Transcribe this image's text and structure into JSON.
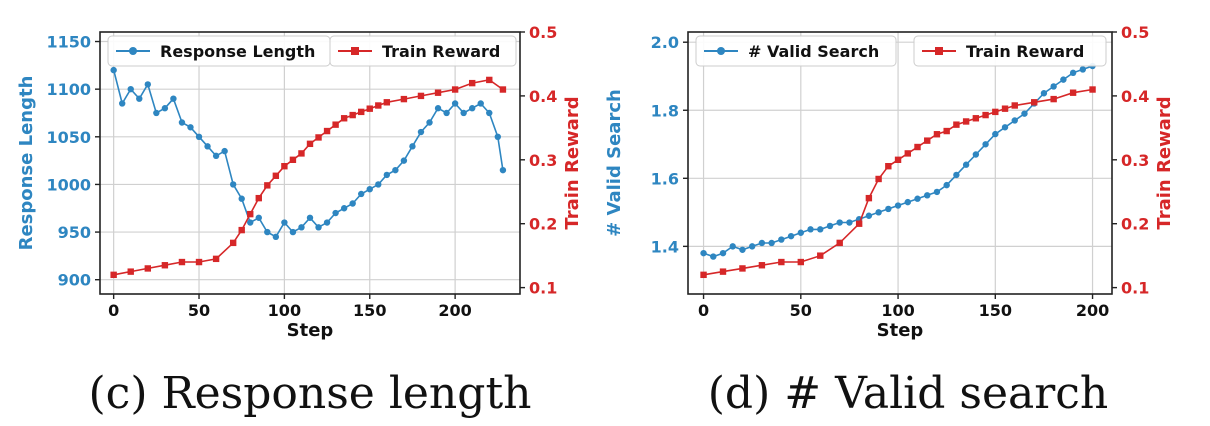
{
  "colors": {
    "blue": "#2e86c1",
    "red": "#d62728"
  },
  "chart_data": [
    {
      "type": "line",
      "caption": "(c) Response length",
      "xlabel": "Step",
      "ylabel_left": "Response Length",
      "ylabel_right": "Train Reward",
      "xlim": [
        -8,
        238
      ],
      "ylim_left": [
        885,
        1160
      ],
      "ylim_right": [
        0.09,
        0.5
      ],
      "x_ticks": [
        0,
        50,
        100,
        150,
        200
      ],
      "y_ticks_left": [
        900,
        950,
        1000,
        1050,
        1100,
        1150
      ],
      "y_ticks_right": [
        0.1,
        0.2,
        0.3,
        0.4,
        0.5
      ],
      "grid": true,
      "legend": [
        "Response Length",
        "Train Reward"
      ],
      "series": [
        {
          "name": "Response Length",
          "axis": "left",
          "color": "#2e86c1",
          "marker": "circle",
          "points": [
            [
              0,
              1120
            ],
            [
              5,
              1085
            ],
            [
              10,
              1100
            ],
            [
              15,
              1090
            ],
            [
              20,
              1105
            ],
            [
              25,
              1075
            ],
            [
              30,
              1080
            ],
            [
              35,
              1090
            ],
            [
              40,
              1065
            ],
            [
              45,
              1060
            ],
            [
              50,
              1050
            ],
            [
              55,
              1040
            ],
            [
              60,
              1030
            ],
            [
              65,
              1035
            ],
            [
              70,
              1000
            ],
            [
              75,
              985
            ],
            [
              80,
              960
            ],
            [
              85,
              965
            ],
            [
              90,
              950
            ],
            [
              95,
              945
            ],
            [
              100,
              960
            ],
            [
              105,
              950
            ],
            [
              110,
              955
            ],
            [
              115,
              965
            ],
            [
              120,
              955
            ],
            [
              125,
              960
            ],
            [
              130,
              970
            ],
            [
              135,
              975
            ],
            [
              140,
              980
            ],
            [
              145,
              990
            ],
            [
              150,
              995
            ],
            [
              155,
              1000
            ],
            [
              160,
              1010
            ],
            [
              165,
              1015
            ],
            [
              170,
              1025
            ],
            [
              175,
              1040
            ],
            [
              180,
              1055
            ],
            [
              185,
              1065
            ],
            [
              190,
              1080
            ],
            [
              195,
              1075
            ],
            [
              200,
              1085
            ],
            [
              205,
              1075
            ],
            [
              210,
              1080
            ],
            [
              215,
              1085
            ],
            [
              220,
              1075
            ],
            [
              225,
              1050
            ],
            [
              228,
              1015
            ]
          ]
        },
        {
          "name": "Train Reward",
          "axis": "right",
          "color": "#d62728",
          "marker": "square",
          "points": [
            [
              0,
              0.12
            ],
            [
              10,
              0.125
            ],
            [
              20,
              0.13
            ],
            [
              30,
              0.135
            ],
            [
              40,
              0.14
            ],
            [
              50,
              0.14
            ],
            [
              60,
              0.145
            ],
            [
              70,
              0.17
            ],
            [
              75,
              0.19
            ],
            [
              80,
              0.215
            ],
            [
              85,
              0.24
            ],
            [
              90,
              0.26
            ],
            [
              95,
              0.275
            ],
            [
              100,
              0.29
            ],
            [
              105,
              0.3
            ],
            [
              110,
              0.31
            ],
            [
              115,
              0.325
            ],
            [
              120,
              0.335
            ],
            [
              125,
              0.345
            ],
            [
              130,
              0.355
            ],
            [
              135,
              0.365
            ],
            [
              140,
              0.37
            ],
            [
              145,
              0.375
            ],
            [
              150,
              0.38
            ],
            [
              155,
              0.385
            ],
            [
              160,
              0.39
            ],
            [
              170,
              0.395
            ],
            [
              180,
              0.4
            ],
            [
              190,
              0.405
            ],
            [
              200,
              0.41
            ],
            [
              210,
              0.42
            ],
            [
              220,
              0.425
            ],
            [
              228,
              0.41
            ]
          ]
        }
      ]
    },
    {
      "type": "line",
      "caption": "(d) # Valid search",
      "xlabel": "Step",
      "ylabel_left": "# Valid Search",
      "ylabel_right": "Train Reward",
      "xlim": [
        -8,
        210
      ],
      "ylim_left": [
        1.26,
        2.03
      ],
      "ylim_right": [
        0.09,
        0.5
      ],
      "x_ticks": [
        0,
        50,
        100,
        150,
        200
      ],
      "y_ticks_left": [
        1.4,
        1.6,
        1.8,
        2.0
      ],
      "y_ticks_right": [
        0.1,
        0.2,
        0.3,
        0.4,
        0.5
      ],
      "grid": true,
      "legend": [
        "# Valid Search",
        "Train Reward"
      ],
      "series": [
        {
          "name": "# Valid Search",
          "axis": "left",
          "color": "#2e86c1",
          "marker": "circle",
          "points": [
            [
              0,
              1.38
            ],
            [
              5,
              1.37
            ],
            [
              10,
              1.38
            ],
            [
              15,
              1.4
            ],
            [
              20,
              1.39
            ],
            [
              25,
              1.4
            ],
            [
              30,
              1.41
            ],
            [
              35,
              1.41
            ],
            [
              40,
              1.42
            ],
            [
              45,
              1.43
            ],
            [
              50,
              1.44
            ],
            [
              55,
              1.45
            ],
            [
              60,
              1.45
            ],
            [
              65,
              1.46
            ],
            [
              70,
              1.47
            ],
            [
              75,
              1.47
            ],
            [
              80,
              1.48
            ],
            [
              85,
              1.49
            ],
            [
              90,
              1.5
            ],
            [
              95,
              1.51
            ],
            [
              100,
              1.52
            ],
            [
              105,
              1.53
            ],
            [
              110,
              1.54
            ],
            [
              115,
              1.55
            ],
            [
              120,
              1.56
            ],
            [
              125,
              1.58
            ],
            [
              130,
              1.61
            ],
            [
              135,
              1.64
            ],
            [
              140,
              1.67
            ],
            [
              145,
              1.7
            ],
            [
              150,
              1.73
            ],
            [
              155,
              1.75
            ],
            [
              160,
              1.77
            ],
            [
              165,
              1.79
            ],
            [
              170,
              1.82
            ],
            [
              175,
              1.85
            ],
            [
              180,
              1.87
            ],
            [
              185,
              1.89
            ],
            [
              190,
              1.91
            ],
            [
              195,
              1.92
            ],
            [
              200,
              1.93
            ]
          ]
        },
        {
          "name": "Train Reward",
          "axis": "right",
          "color": "#d62728",
          "marker": "square",
          "points": [
            [
              0,
              0.12
            ],
            [
              10,
              0.125
            ],
            [
              20,
              0.13
            ],
            [
              30,
              0.135
            ],
            [
              40,
              0.14
            ],
            [
              50,
              0.14
            ],
            [
              60,
              0.15
            ],
            [
              70,
              0.17
            ],
            [
              80,
              0.2
            ],
            [
              85,
              0.24
            ],
            [
              90,
              0.27
            ],
            [
              95,
              0.29
            ],
            [
              100,
              0.3
            ],
            [
              105,
              0.31
            ],
            [
              110,
              0.32
            ],
            [
              115,
              0.33
            ],
            [
              120,
              0.34
            ],
            [
              125,
              0.345
            ],
            [
              130,
              0.355
            ],
            [
              135,
              0.36
            ],
            [
              140,
              0.365
            ],
            [
              145,
              0.37
            ],
            [
              150,
              0.375
            ],
            [
              155,
              0.38
            ],
            [
              160,
              0.385
            ],
            [
              170,
              0.39
            ],
            [
              180,
              0.395
            ],
            [
              190,
              0.405
            ],
            [
              200,
              0.41
            ]
          ]
        }
      ]
    }
  ]
}
